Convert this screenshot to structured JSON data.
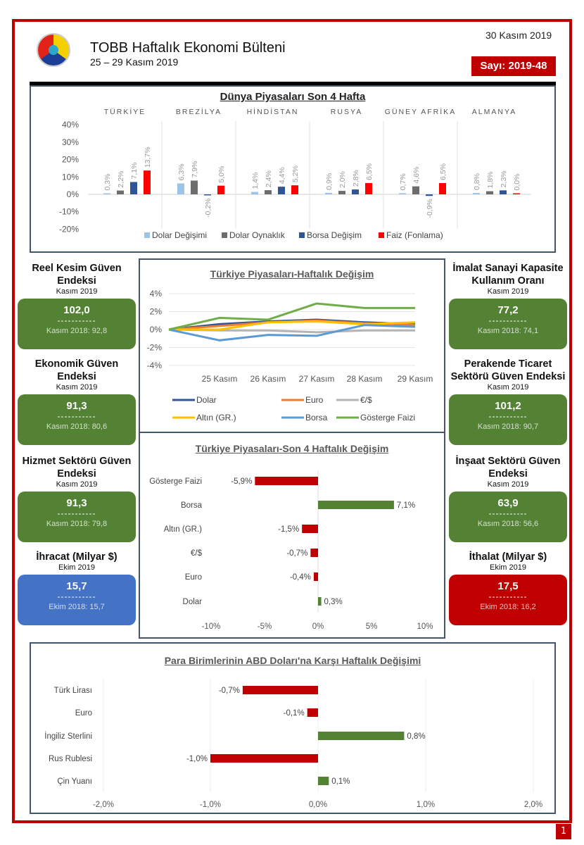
{
  "header": {
    "title": "TOBB Haftalık Ekonomi Bülteni",
    "subtitle": "25 – 29 Kasım 2019",
    "date": "30 Kasım 2019",
    "issue": "Sayı: 2019-48",
    "logo_text": "TÜRKİYE ODALAR VE BORSALAR BİRLİĞİ TOBB",
    "page_number": "1"
  },
  "colors": {
    "frame": "#c00000",
    "green": "#548235",
    "blue": "#4472c4",
    "red": "#c00000"
  },
  "left_panels": [
    {
      "title": "Reel Kesim Güven Endeksi",
      "period": "Kasım 2019",
      "value": "102,0",
      "dashes": "-----------",
      "compare": "Kasım 2018: 92,8",
      "color": "#548235"
    },
    {
      "title": "Ekonomik Güven Endeksi",
      "period": "Kasım 2019",
      "value": "91,3",
      "dashes": "-----------",
      "compare": "Kasım 2018: 80,6",
      "color": "#548235"
    },
    {
      "title": "Hizmet Sektörü Güven Endeksi",
      "period": "Kasım 2019",
      "value": "91,3",
      "dashes": "-----------",
      "compare": "Kasım 2018: 79,8",
      "color": "#548235"
    },
    {
      "title": "İhracat (Milyar $)",
      "period": "Ekim 2019",
      "value": "15,7",
      "dashes": "-----------",
      "compare": "Ekim 2018: 15,7",
      "color": "#4472c4"
    }
  ],
  "right_panels": [
    {
      "title": "İmalat Sanayi Kapasite Kullanım Oranı",
      "period": "Kasım 2019",
      "value": "77,2",
      "dashes": "-----------",
      "compare": "Kasım 2018: 74,1",
      "color": "#548235"
    },
    {
      "title": "Perakende Ticaret Sektörü Güven Endeksi",
      "period": "Kasım 2019",
      "value": "101,2",
      "dashes": "-----------",
      "compare": "Kasım 2018: 90,7",
      "color": "#548235"
    },
    {
      "title": "İnşaat Sektörü Güven Endeksi",
      "period": "Kasım 2019",
      "value": "63,9",
      "dashes": "-----------",
      "compare": "Kasım 2018: 56,6",
      "color": "#548235"
    },
    {
      "title": "İthalat (Milyar $)",
      "period": "Ekim 2019",
      "value": "17,5",
      "dashes": "-----------",
      "compare": "Ekim 2018: 16,2",
      "color": "#c00000"
    }
  ],
  "chart_data": [
    {
      "type": "bar",
      "title": "Dünya Piyasaları Son 4 Hafta",
      "categories": [
        "TÜRKİYE",
        "BREZİLYA",
        "HİNDİSTAN",
        "RUSYA",
        "GÜNEY AFRİKA",
        "ALMANYA"
      ],
      "ylim": [
        -20,
        40
      ],
      "yticks": [
        "-20%",
        "-10%",
        "0%",
        "10%",
        "20%",
        "30%",
        "40%"
      ],
      "legend": "bottom",
      "series": [
        {
          "name": "Dolar Değişimi",
          "color": "#9dc3e6",
          "values": [
            0.3,
            6.3,
            1.4,
            0.9,
            0.7,
            0.8
          ]
        },
        {
          "name": "Dolar Oynaklık",
          "color": "#6d6d6d",
          "values": [
            2.2,
            7.9,
            2.4,
            2.0,
            4.6,
            1.8
          ]
        },
        {
          "name": "Borsa Değişim",
          "color": "#2f5597",
          "values": [
            7.1,
            -0.2,
            4.4,
            2.8,
            -0.9,
            2.3
          ]
        },
        {
          "name": "Faiz (Fonlama)",
          "color": "#ff0000",
          "values": [
            13.7,
            5.0,
            5.2,
            6.5,
            6.5,
            0.0
          ]
        }
      ]
    },
    {
      "type": "line",
      "title": "Türkiye Piyasaları-Haftalık Değişim",
      "categories": [
        "",
        "25 Kasım",
        "26 Kasım",
        "27 Kasım",
        "28 Kasım",
        "29 Kasım"
      ],
      "ylim": [
        -4,
        4
      ],
      "yticks": [
        "-4%",
        "-2%",
        "0%",
        "2%",
        "4%"
      ],
      "grid": true,
      "legend": "bottom",
      "series": [
        {
          "name": "Dolar",
          "color": "#2f5597",
          "values": [
            0,
            0.6,
            0.9,
            1.1,
            0.8,
            0.6
          ]
        },
        {
          "name": "Euro",
          "color": "#ed7d31",
          "values": [
            0,
            0.4,
            0.8,
            1.0,
            0.7,
            0.5
          ]
        },
        {
          "name": "€/$",
          "color": "#b4b4b4",
          "values": [
            0,
            -0.1,
            -0.1,
            -0.3,
            -0.1,
            -0.1
          ]
        },
        {
          "name": "Altın (GR.)",
          "color": "#ffc000",
          "values": [
            0,
            0.0,
            0.8,
            0.9,
            0.6,
            0.8
          ]
        },
        {
          "name": "Borsa",
          "color": "#5b9bd5",
          "values": [
            0,
            -1.2,
            -0.6,
            -0.7,
            0.5,
            0.3
          ]
        },
        {
          "name": "Gösterge Faizi",
          "color": "#70ad47",
          "values": [
            0,
            1.3,
            1.1,
            2.9,
            2.4,
            2.4
          ]
        }
      ]
    },
    {
      "type": "bar",
      "orientation": "horizontal",
      "title": "Türkiye Piyasaları-Son 4 Haftalık Değişim",
      "categories": [
        "Gösterge Faizi",
        "Borsa",
        "Altın (GR.)",
        "€/$",
        "Euro",
        "Dolar"
      ],
      "values": [
        -5.9,
        7.1,
        -1.5,
        -0.7,
        -0.4,
        0.3
      ],
      "labels": [
        "-5,9%",
        "7,1%",
        "-1,5%",
        "-0,7%",
        "-0,4%",
        "0,3%"
      ],
      "xlim": [
        -10,
        10
      ],
      "xticks": [
        "-10%",
        "-5%",
        "0%",
        "5%",
        "10%"
      ],
      "negative_color": "#c00000",
      "positive_color": "#548235"
    },
    {
      "type": "bar",
      "orientation": "horizontal",
      "title": "Para Birimlerinin ABD Doları'na Karşı Haftalık Değişimi",
      "categories": [
        "Türk Lirası",
        "Euro",
        "İngiliz Sterlini",
        "Rus Rublesi",
        "Çin Yuanı"
      ],
      "values": [
        -0.7,
        -0.1,
        0.8,
        -1.0,
        0.1
      ],
      "labels": [
        "-0,7%",
        "-0,1%",
        "0,8%",
        "-1,0%",
        "0,1%"
      ],
      "xlim": [
        -2,
        2
      ],
      "xticks": [
        "-2,0%",
        "-1,0%",
        "0,0%",
        "1,0%",
        "2,0%"
      ],
      "negative_color": "#c00000",
      "positive_color": "#548235"
    }
  ]
}
